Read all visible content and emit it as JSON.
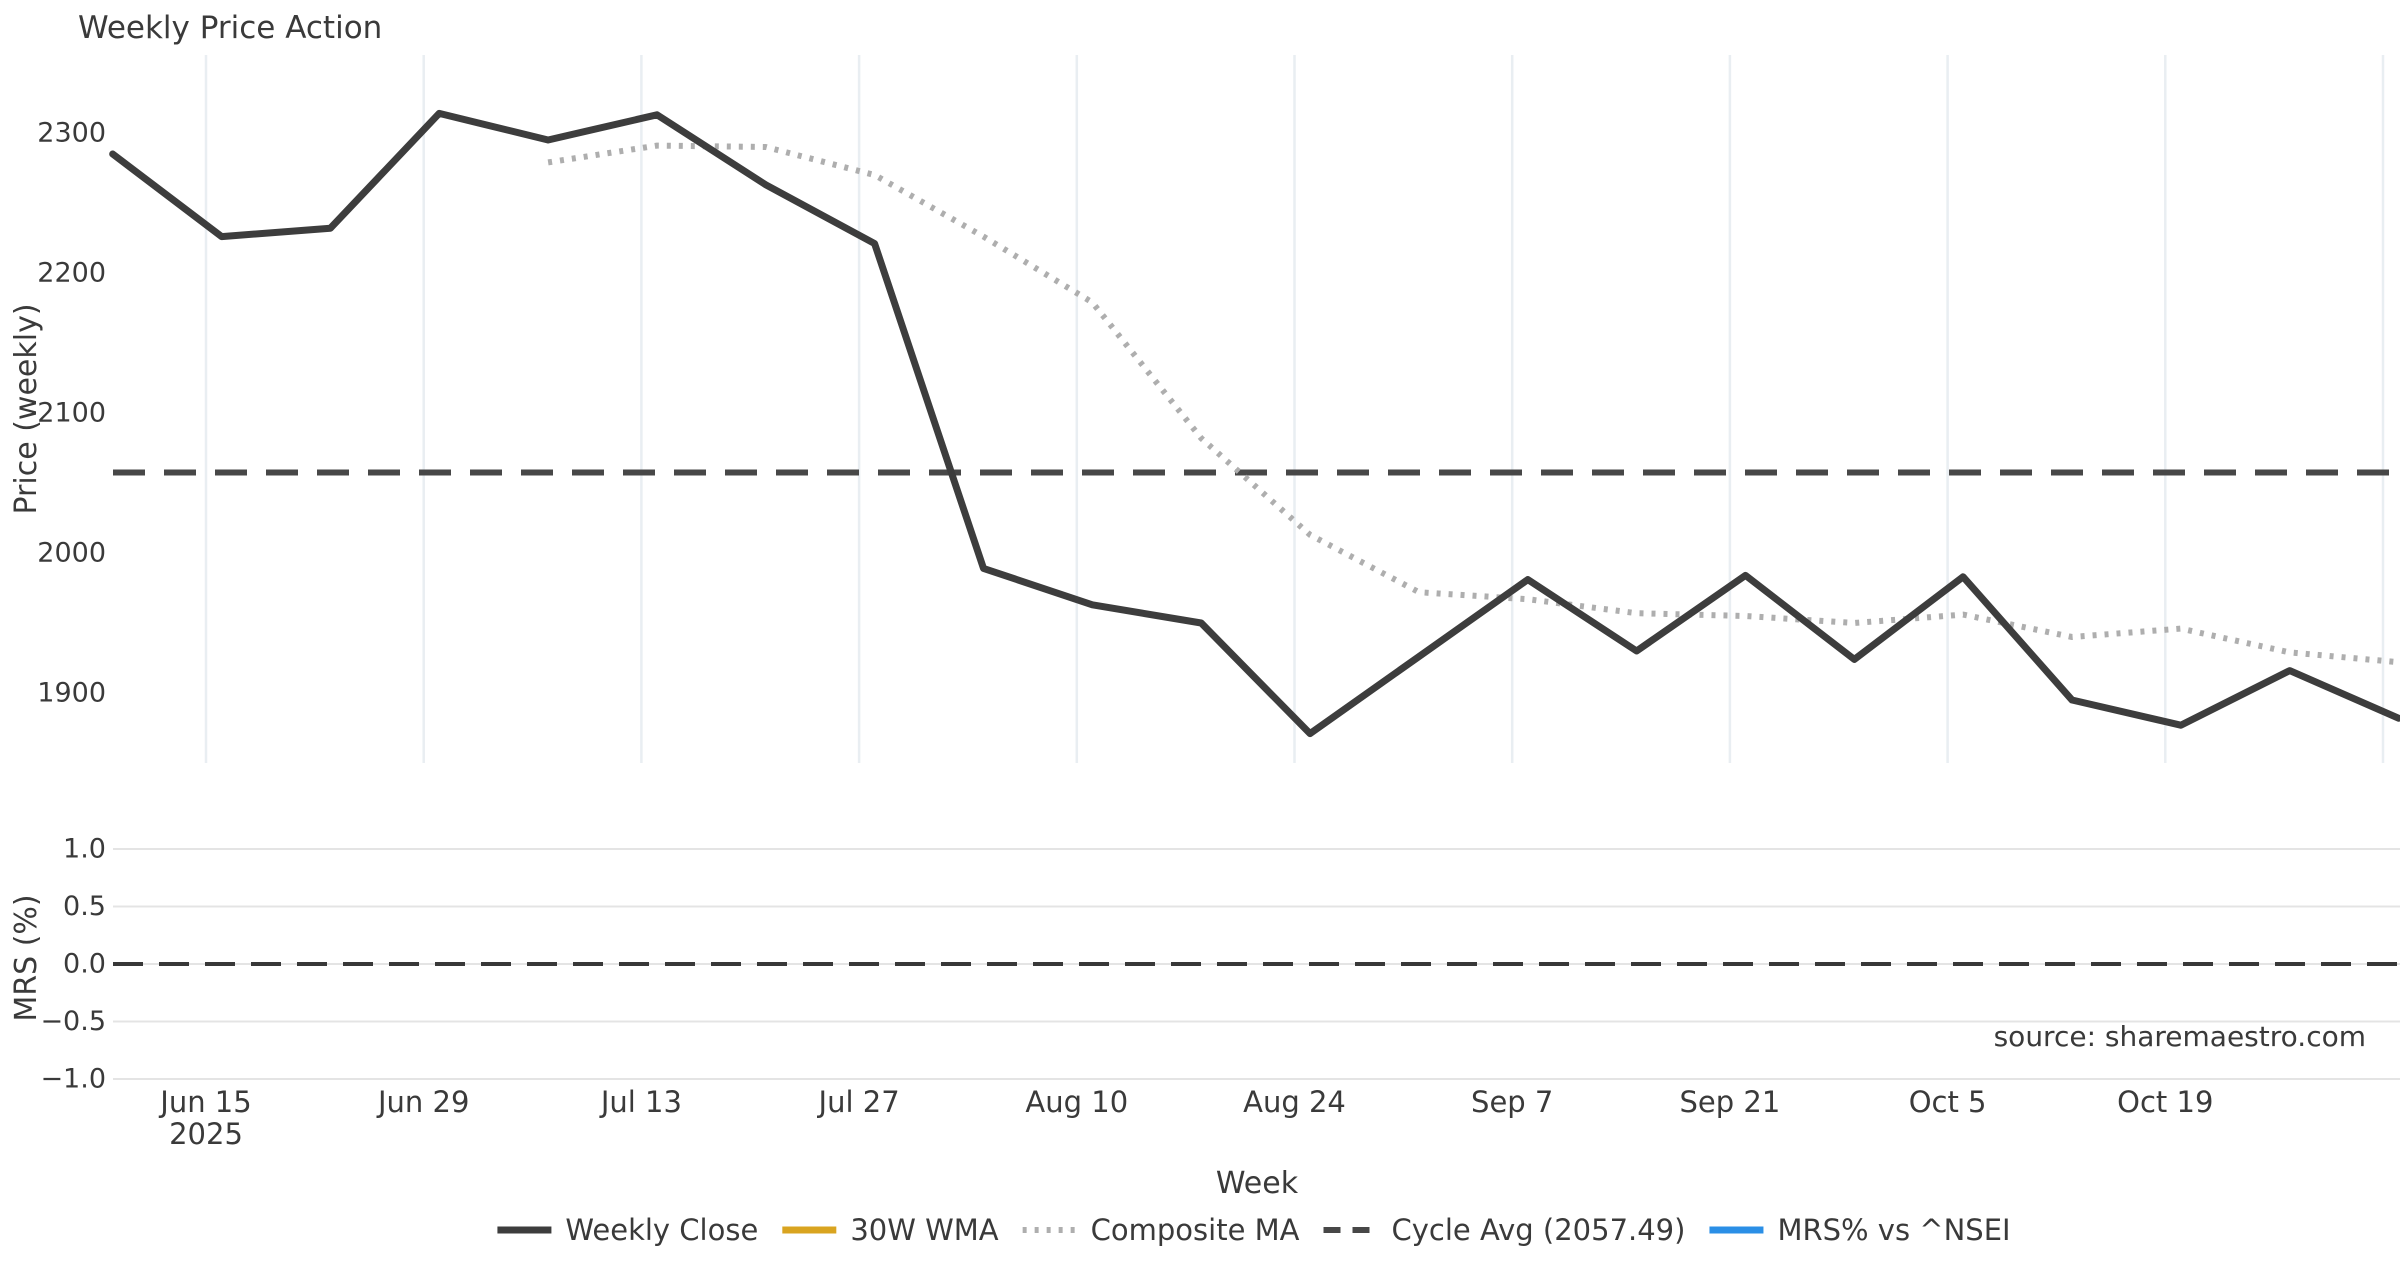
{
  "title": "Weekly Price Action",
  "source_text": "source: sharemaestro.com",
  "axes": {
    "price_label": "Price (weekly)",
    "mrs_label": "MRS (%)",
    "week_label": "Week",
    "price_tick_labels": [
      "2300",
      "2200",
      "2100",
      "2000",
      "1900"
    ],
    "price_tick_values": [
      2300,
      2200,
      2100,
      2000,
      1900
    ],
    "mrs_tick_labels": [
      "1.0",
      "0.5",
      "0.0",
      "−0.5",
      "−1.0"
    ],
    "mrs_tick_values": [
      1.0,
      0.5,
      0.0,
      -0.5,
      -1.0
    ],
    "x_tick_labels": [
      "Jun 15",
      "Jun 29",
      "Jul 13",
      "Jul 27",
      "Aug 10",
      "Aug 24",
      "Sep 7",
      "Sep 21",
      "Oct 5",
      "Oct 19"
    ],
    "x_first_tick_year": "2025"
  },
  "legend": [
    {
      "label": "Weekly Close",
      "color": "#3d3d3d",
      "style": "solid"
    },
    {
      "label": "30W WMA",
      "color": "#d9a420",
      "style": "solid"
    },
    {
      "label": "Composite MA",
      "color": "#aeaeae",
      "style": "dotted"
    },
    {
      "label": "Cycle Avg (2057.49)",
      "color": "#474747",
      "style": "dashed"
    },
    {
      "label": "MRS% vs ^NSEI",
      "color": "#2b8fe6",
      "style": "solid"
    }
  ],
  "colors": {
    "weekly_close": "#3d3d3d",
    "composite_ma": "#aeaeae",
    "cycle_avg": "#474747",
    "zero_line": "#383838",
    "grid_vertical": "#e9eef2",
    "grid_horizontal": "#e4e4e4",
    "tick_text": "#3a3a3a",
    "title_text": "#2a2a2a",
    "source_text": "#a6a6a6"
  },
  "chart_data": {
    "type": "line",
    "title": "Weekly Price Action",
    "xlabel": "Week",
    "ylabel": "Price (weekly)",
    "ylabel_secondary": "MRS (%)",
    "x_tick_labels": [
      "Jun 15 2025",
      "Jun 29",
      "Jul 13",
      "Jul 27",
      "Aug 10",
      "Aug 24",
      "Sep 7",
      "Sep 21",
      "Oct 5",
      "Oct 19"
    ],
    "points_per_tick_interval": 2,
    "price_ylim": [
      1850,
      2356
    ],
    "mrs_ylim": [
      -1.15,
      1.2
    ],
    "grid": {
      "top_panel": "vertical-only",
      "bottom_panel": "horizontal-only"
    },
    "legend_position": "bottom-center",
    "series": [
      {
        "name": "Weekly Close",
        "values": [
          2285,
          2226,
          2232,
          2314,
          2295,
          2313,
          2263,
          2221,
          1989,
          1963,
          1950,
          1871,
          1926,
          1981,
          1930,
          1984,
          1924,
          1983,
          1895,
          1877,
          1916,
          1882
        ]
      },
      {
        "name": "Composite MA",
        "values": [
          null,
          null,
          null,
          null,
          2279,
          2291,
          2290,
          2270,
          2226,
          2179,
          2082,
          2013,
          1972,
          1967,
          1957,
          1955,
          1950,
          1956,
          1940,
          1946,
          1929,
          1922
        ]
      },
      {
        "name": "30W WMA",
        "values": []
      },
      {
        "name": "MRS% vs ^NSEI",
        "values": []
      }
    ],
    "cycle_avg": 2057.49,
    "mrs_zero_line": 0.0
  }
}
